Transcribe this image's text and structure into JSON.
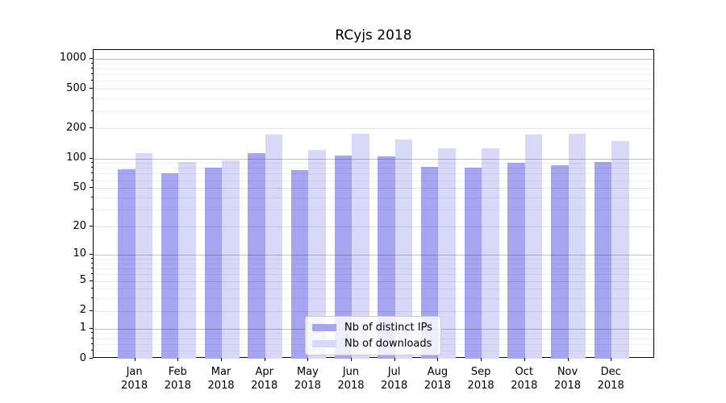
{
  "title": "RCyjs 2018",
  "colors": {
    "bar_distinct_ips": "#a5a5f2",
    "bar_downloads": "#d8d8f8",
    "grid_minor": "rgba(0,0,0,0.06)",
    "grid_major": "rgba(0,0,0,0.10)",
    "grid_power10": "rgba(0,0,0,0.24)",
    "axis": "#000000"
  },
  "legend": {
    "items": [
      {
        "label": "Nb of distinct IPs",
        "color": "#a5a5f2"
      },
      {
        "label": "Nb of downloads",
        "color": "#d8d8f8"
      }
    ]
  },
  "chart_data": {
    "type": "bar",
    "title": "RCyjs 2018",
    "categories": [
      "Jan 2018",
      "Feb 2018",
      "Mar 2018",
      "Apr 2018",
      "May 2018",
      "Jun 2018",
      "Jul 2018",
      "Aug 2018",
      "Sep 2018",
      "Oct 2018",
      "Nov 2018",
      "Dec 2018"
    ],
    "x_tick_month": [
      "Jan",
      "Feb",
      "Mar",
      "Apr",
      "May",
      "Jun",
      "Jul",
      "Aug",
      "Sep",
      "Oct",
      "Nov",
      "Dec"
    ],
    "x_tick_year": "2018",
    "series": [
      {
        "name": "Nb of distinct IPs",
        "color": "#a5a5f2",
        "values": [
          77,
          71,
          81,
          114,
          76,
          106,
          105,
          82,
          81,
          90,
          86,
          92
        ]
      },
      {
        "name": "Nb of downloads",
        "color": "#d8d8f8",
        "values": [
          112,
          92,
          96,
          173,
          122,
          178,
          154,
          126,
          127,
          173,
          178,
          150
        ]
      }
    ],
    "xlabel": "",
    "ylabel": "",
    "y_scale": "log1p",
    "y_ticks": [
      0,
      1,
      2,
      5,
      10,
      20,
      50,
      100,
      200,
      500,
      1000
    ],
    "y_tick_labels": [
      "0",
      "1",
      "2",
      "5",
      "10",
      "20",
      "50",
      "100",
      "200",
      "500",
      "1000"
    ],
    "y_minor_ticks": [
      0.2,
      0.4,
      0.6,
      0.8,
      3,
      4,
      6,
      7,
      8,
      9,
      30,
      40,
      60,
      70,
      80,
      90,
      300,
      400,
      600,
      700,
      800,
      900
    ],
    "ylim": [
      0,
      1200
    ],
    "grid": true,
    "legend_position": "inside-bottom-center"
  }
}
